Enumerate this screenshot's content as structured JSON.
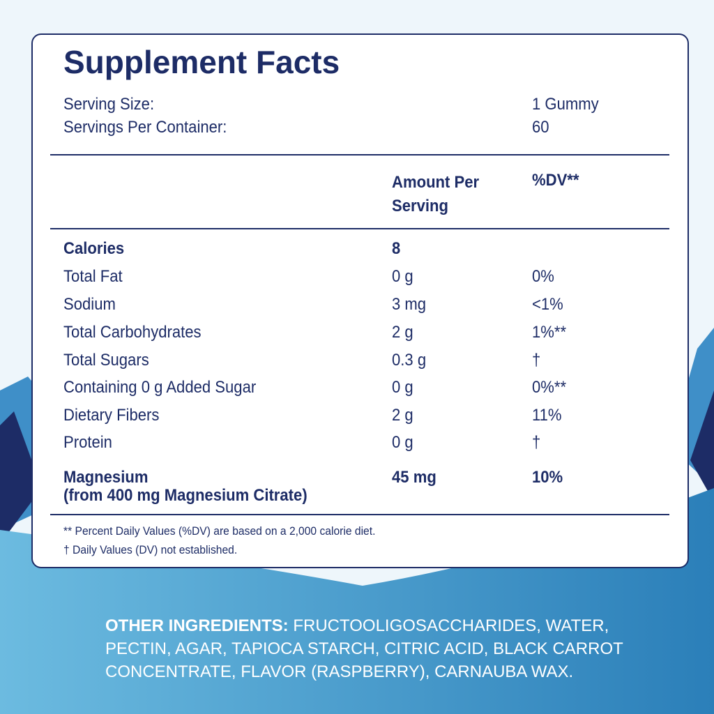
{
  "title": "Supplement Facts",
  "serving": {
    "size_label": "Serving Size:",
    "size_value": "1 Gummy",
    "servings_label": "Servings Per Container:",
    "servings_value": "60"
  },
  "table": {
    "header": {
      "amount": "Amount Per Serving",
      "dv": "%DV**"
    },
    "rows": [
      {
        "name": "Calories",
        "amount": "8"
      },
      {
        "name": "Total Fat",
        "amount": "0 g",
        "dv": "0%"
      },
      {
        "name": "Sodium",
        "amount": "3 mg",
        "dv": "<1%"
      },
      {
        "name": "Total Carbohydrates",
        "amount": "2 g",
        "dv": "1%**"
      },
      {
        "name": "Total Sugars",
        "amount": "0.3 g",
        "dv": "†"
      },
      {
        "name": "Containing 0 g Added Sugar",
        "amount": "0 g",
        "dv": "0%**"
      },
      {
        "name": "Dietary Fibers",
        "amount": "2 g",
        "dv": "11%"
      },
      {
        "name": "Protein",
        "amount": "0 g",
        "dv": "†"
      },
      {
        "name": "Magnesium",
        "name_note": "(from 400 mg Magnesium Citrate)",
        "amount": "45 mg",
        "dv": "10%"
      }
    ]
  },
  "footnotes": [
    "** Percent Daily Values (%DV) are based on a 2,000 calorie diet.",
    "† Daily Values (DV) not established."
  ],
  "ingredients": {
    "label": "OTHER INGREDIENTS:",
    "text": "FRUCTOOLIGOSACCHARIDES, WATER, PECTIN, AGAR, TAPIOCA STARCH, CITRIC ACID, BLACK CARROT CONCENTRATE, FLAVOR (RASPBERRY), CARNAUBA WAX."
  }
}
